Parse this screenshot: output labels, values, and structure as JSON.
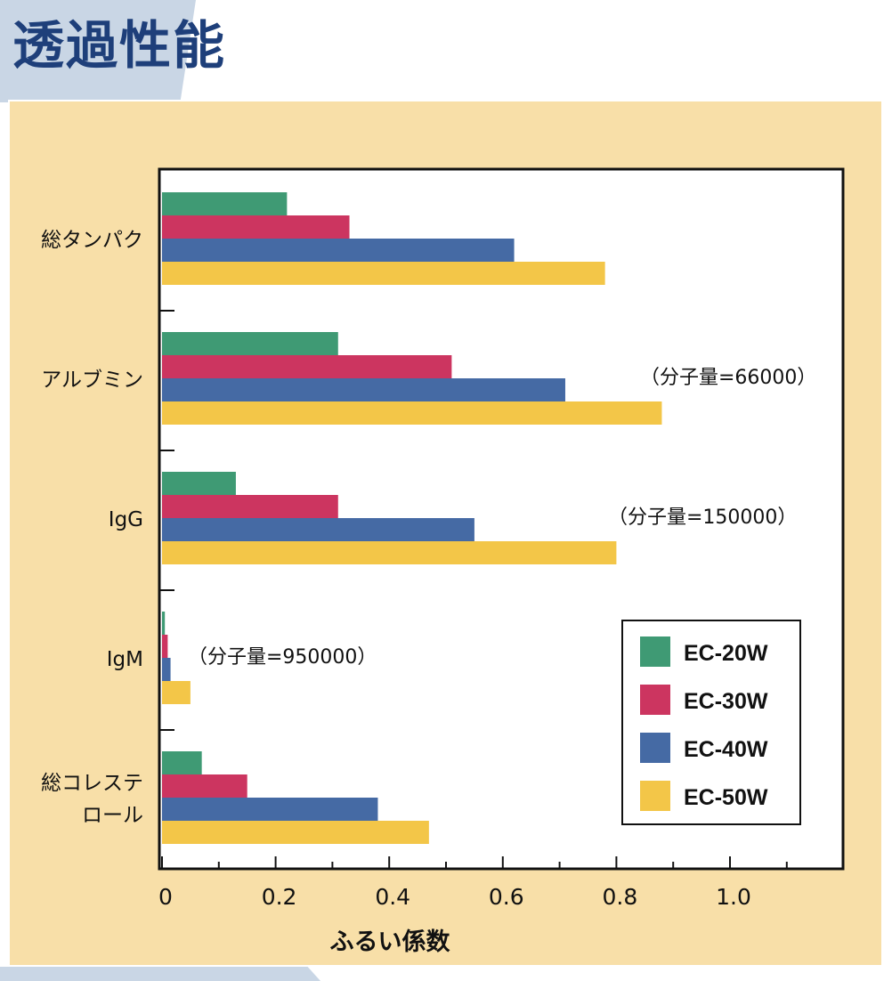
{
  "page_title": "透過性能",
  "chart_data": {
    "type": "bar",
    "orientation": "horizontal",
    "categories": [
      [
        "総タンパク"
      ],
      [
        "アルブミン"
      ],
      [
        "IgG"
      ],
      [
        "IgM"
      ],
      [
        "総コレステ",
        "ロール"
      ]
    ],
    "series": [
      {
        "name": "EC-20W",
        "color": "#3f9a74",
        "values": [
          0.22,
          0.31,
          0.13,
          0.005,
          0.07
        ]
      },
      {
        "name": "EC-30W",
        "color": "#cc3560",
        "values": [
          0.33,
          0.51,
          0.31,
          0.01,
          0.15
        ]
      },
      {
        "name": "EC-40W",
        "color": "#456aa4",
        "values": [
          0.62,
          0.71,
          0.55,
          0.015,
          0.38
        ]
      },
      {
        "name": "EC-50W",
        "color": "#f3c648",
        "values": [
          0.78,
          0.88,
          0.8,
          0.05,
          0.47
        ]
      }
    ],
    "annotations": [
      {
        "category_index": 1,
        "text": "（分子量=66000）"
      },
      {
        "category_index": 2,
        "text": "（分子量=150000）"
      },
      {
        "category_index": 3,
        "text": "（分子量=950000）"
      }
    ],
    "x_ticks": [
      {
        "value": 0,
        "label": "0"
      },
      {
        "value": 0.2,
        "label": "0.2"
      },
      {
        "value": 0.4,
        "label": "0.4"
      },
      {
        "value": 0.6,
        "label": "0.6"
      },
      {
        "value": 0.8,
        "label": "0.8"
      },
      {
        "value": 1.0,
        "label": "1.0"
      }
    ],
    "x_minor_ticks": [
      0.1,
      0.3,
      0.5,
      0.7,
      0.9,
      1.1
    ],
    "xlabel": "ふるい係数",
    "ylabel": "",
    "xlim": [
      0,
      1.2
    ],
    "grid": false,
    "legend_position": "bottom-right",
    "panel_color": "#f8dfa8"
  }
}
